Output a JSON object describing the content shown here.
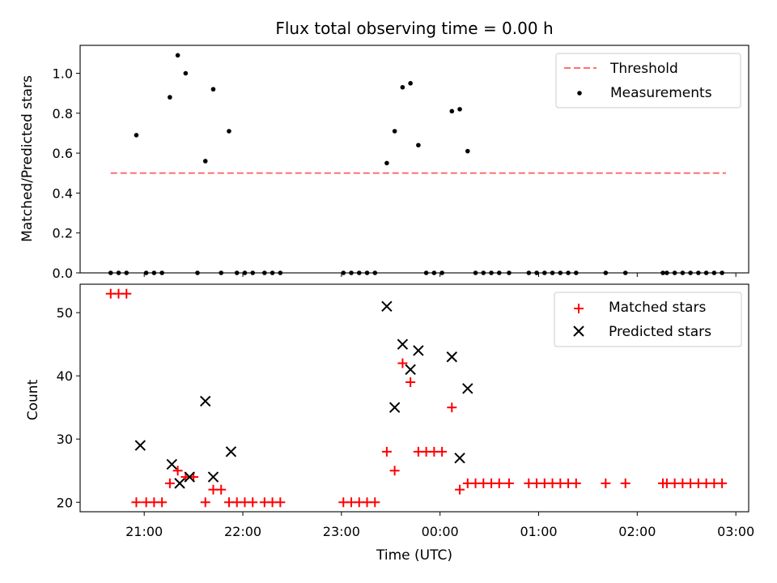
{
  "chart_data": [
    {
      "type": "scatter",
      "title": "Flux total observing time = 0.00 h",
      "xlabel": "",
      "ylabel": "Matched/Predicted stars",
      "ylim": [
        0,
        1.14
      ],
      "yticks": [
        0.0,
        0.2,
        0.4,
        0.6,
        0.8,
        1.0
      ],
      "ytick_labels": [
        "0.0",
        "0.2",
        "0.4",
        "0.6",
        "0.8",
        "1.0"
      ],
      "x_unit": "hours since 20:00 UTC",
      "xlim": [
        0.35,
        7.13
      ],
      "legend": "top-right",
      "grid": false,
      "series": [
        {
          "name": "Threshold",
          "style": "dashed-line",
          "color": "#ff7070",
          "x": [
            0.66,
            6.9
          ],
          "y": [
            0.5,
            0.5
          ]
        },
        {
          "name": "Measurements",
          "style": "dot",
          "color": "#000000",
          "x": [
            0.66,
            0.74,
            0.82,
            0.92,
            1.02,
            1.1,
            1.18,
            1.26,
            1.34,
            1.42,
            1.54,
            1.62,
            1.7,
            1.78,
            1.86,
            1.94,
            2.02,
            2.1,
            2.22,
            2.3,
            2.38,
            3.02,
            3.1,
            3.18,
            3.26,
            3.34,
            3.46,
            3.54,
            3.62,
            3.7,
            3.78,
            3.86,
            3.94,
            4.02,
            4.12,
            4.2,
            4.28,
            4.36,
            4.44,
            4.52,
            4.6,
            4.7,
            4.9,
            4.98,
            5.06,
            5.14,
            5.22,
            5.3,
            5.38,
            5.68,
            5.88,
            6.26,
            6.3,
            6.38,
            6.46,
            6.54,
            6.62,
            6.7,
            6.78,
            6.86
          ],
          "y": [
            0.0,
            0.0,
            0.0,
            0.69,
            0.0,
            0.0,
            0.0,
            0.88,
            1.09,
            1.0,
            0.0,
            0.56,
            0.92,
            0.0,
            0.71,
            0.0,
            0.0,
            0.0,
            0.0,
            0.0,
            0.0,
            0.0,
            0.0,
            0.0,
            0.0,
            0.0,
            0.55,
            0.71,
            0.93,
            0.95,
            0.64,
            0.0,
            0.0,
            0.0,
            0.81,
            0.82,
            0.61,
            0.0,
            0.0,
            0.0,
            0.0,
            0.0,
            0.0,
            0.0,
            0.0,
            0.0,
            0.0,
            0.0,
            0.0,
            0.0,
            0.0,
            0.0,
            0.0,
            0.0,
            0.0,
            0.0,
            0.0,
            0.0,
            0.0,
            0.0
          ]
        }
      ]
    },
    {
      "type": "scatter",
      "title": "",
      "xlabel": "Time (UTC)",
      "ylabel": "Count",
      "ylim": [
        18.5,
        54.5
      ],
      "yticks": [
        20,
        30,
        40,
        50
      ],
      "ytick_labels": [
        "20",
        "30",
        "40",
        "50"
      ],
      "x_unit": "hours since 20:00 UTC",
      "xlim": [
        0.35,
        7.13
      ],
      "xticks": [
        1,
        2,
        3,
        4,
        5,
        6,
        7
      ],
      "xtick_labels": [
        "21:00",
        "22:00",
        "23:00",
        "00:00",
        "01:00",
        "02:00",
        "03:00"
      ],
      "legend": "top-right",
      "grid": false,
      "series": [
        {
          "name": "Matched stars",
          "style": "plus",
          "color": "#ff0000",
          "x": [
            0.66,
            0.74,
            0.82,
            0.92,
            1.02,
            1.1,
            1.18,
            1.26,
            1.34,
            1.42,
            1.5,
            1.62,
            1.7,
            1.78,
            1.86,
            1.94,
            2.02,
            2.1,
            2.22,
            2.3,
            2.38,
            3.02,
            3.1,
            3.18,
            3.26,
            3.34,
            3.46,
            3.54,
            3.62,
            3.7,
            3.78,
            3.86,
            3.94,
            4.02,
            4.12,
            4.2,
            4.28,
            4.36,
            4.44,
            4.52,
            4.6,
            4.7,
            4.9,
            4.98,
            5.06,
            5.14,
            5.22,
            5.3,
            5.38,
            5.68,
            5.88,
            6.26,
            6.3,
            6.38,
            6.46,
            6.54,
            6.62,
            6.7,
            6.78,
            6.86
          ],
          "y": [
            53,
            53,
            53,
            20,
            20,
            20,
            20,
            23,
            25,
            24,
            24,
            20,
            22,
            22,
            20,
            20,
            20,
            20,
            20,
            20,
            20,
            20,
            20,
            20,
            20,
            20,
            28,
            25,
            42,
            39,
            28,
            28,
            28,
            28,
            35,
            22,
            23,
            23,
            23,
            23,
            23,
            23,
            23,
            23,
            23,
            23,
            23,
            23,
            23,
            23,
            23,
            23,
            23,
            23,
            23,
            23,
            23,
            23,
            23,
            23
          ]
        },
        {
          "name": "Predicted stars",
          "style": "x",
          "color": "#000000",
          "x": [
            0.96,
            1.28,
            1.36,
            1.46,
            1.62,
            1.7,
            1.88,
            3.46,
            3.54,
            3.62,
            3.7,
            3.78,
            4.12,
            4.2,
            4.28
          ],
          "y": [
            29,
            26,
            23,
            24,
            36,
            24,
            28,
            51,
            35,
            45,
            41,
            44,
            43,
            27,
            38
          ]
        }
      ]
    }
  ]
}
